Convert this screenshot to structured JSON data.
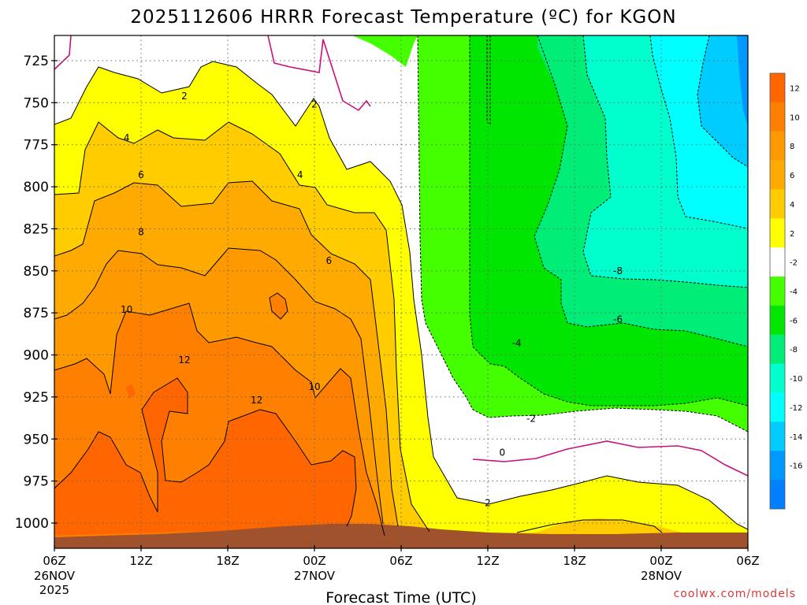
{
  "chart_data": {
    "type": "heatmap",
    "subtype": "time-pressure temperature cross-section (filled contours)",
    "title": "2025112606 HRRR Forecast Temperature (ºC) for KGON",
    "xlabel": "Forecast Time (UTC)",
    "ylabel": "",
    "x_ticks": [
      {
        "label": "06Z",
        "sub1": "26NOV",
        "sub2": "2025"
      },
      {
        "label": "12Z",
        "sub1": "",
        "sub2": ""
      },
      {
        "label": "18Z",
        "sub1": "",
        "sub2": ""
      },
      {
        "label": "00Z",
        "sub1": "27NOV",
        "sub2": ""
      },
      {
        "label": "06Z",
        "sub1": "",
        "sub2": ""
      },
      {
        "label": "12Z",
        "sub1": "",
        "sub2": ""
      },
      {
        "label": "18Z",
        "sub1": "",
        "sub2": ""
      },
      {
        "label": "00Z",
        "sub1": "28NOV",
        "sub2": ""
      },
      {
        "label": "06Z",
        "sub1": "",
        "sub2": ""
      }
    ],
    "x_hours": [
      0,
      6,
      12,
      18,
      24,
      30,
      36,
      42,
      48
    ],
    "y_ticks": [
      "725",
      "750",
      "775",
      "800",
      "825",
      "850",
      "875",
      "900",
      "925",
      "950",
      "975",
      "1000"
    ],
    "y_values": [
      725,
      750,
      775,
      800,
      825,
      850,
      875,
      900,
      925,
      950,
      975,
      1000
    ],
    "ylim": [
      1013,
      712
    ],
    "y_reversed": true,
    "grid": true,
    "colorbar": {
      "placement": "right",
      "labels": [
        "12",
        "10",
        "8",
        "6",
        "4",
        "2",
        "-2",
        "-4",
        "-6",
        "-8",
        "-10",
        "-12",
        "-14",
        "-16"
      ],
      "colors": [
        "#ff6600",
        "#ff8000",
        "#ff9900",
        "#ffaa00",
        "#ffcc00",
        "#ffff00",
        "#ffffff",
        "#44ff00",
        "#00e600",
        "#00ee77",
        "#00ffcc",
        "#00ffff",
        "#00ccff",
        "#0099ff",
        "#0080ff"
      ]
    },
    "contour_labels": [
      {
        "text": "2",
        "hour": 9.0,
        "p": 746
      },
      {
        "text": "2",
        "hour": 18.0,
        "p": 751
      },
      {
        "text": "4",
        "hour": 5.0,
        "p": 771
      },
      {
        "text": "4",
        "hour": 17.0,
        "p": 793
      },
      {
        "text": "6",
        "hour": 6.0,
        "p": 793
      },
      {
        "text": "6",
        "hour": 19.0,
        "p": 844
      },
      {
        "text": "8",
        "hour": 6.0,
        "p": 827
      },
      {
        "text": "10",
        "hour": 5.0,
        "p": 873
      },
      {
        "text": "10",
        "hour": 18.0,
        "p": 919
      },
      {
        "text": "12",
        "hour": 9.0,
        "p": 903
      },
      {
        "text": "12",
        "hour": 14.0,
        "p": 927
      },
      {
        "text": "-4",
        "hour": 32.0,
        "p": 893
      },
      {
        "text": "-2",
        "hour": 33.0,
        "p": 938
      },
      {
        "text": "0",
        "hour": 31.0,
        "p": 958
      },
      {
        "text": "2",
        "hour": 30.0,
        "p": 988
      },
      {
        "text": "-8",
        "hour": 39.0,
        "p": 850
      },
      {
        "text": "-6",
        "hour": 39.0,
        "p": 879
      }
    ]
  },
  "credit": "coolwx.com/models"
}
